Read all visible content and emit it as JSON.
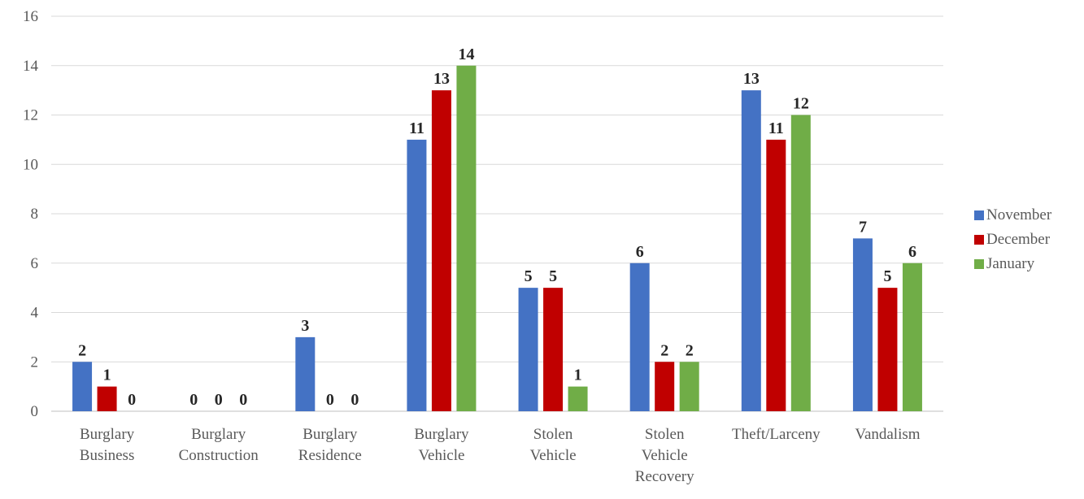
{
  "chart_data": {
    "type": "bar",
    "categories": [
      [
        "Burglary",
        "Business"
      ],
      [
        "Burglary",
        "Construction"
      ],
      [
        "Burglary",
        "Residence"
      ],
      [
        "Burglary",
        "Vehicle"
      ],
      [
        "Stolen",
        "Vehicle"
      ],
      [
        "Stolen",
        "Vehicle",
        "Recovery"
      ],
      [
        "Theft/Larceny"
      ],
      [
        "Vandalism"
      ]
    ],
    "series": [
      {
        "name": "November",
        "color": "#4472C4",
        "values": [
          2,
          0,
          3,
          11,
          5,
          6,
          13,
          7
        ]
      },
      {
        "name": "December",
        "color": "#C00000",
        "values": [
          1,
          0,
          0,
          13,
          5,
          2,
          11,
          5
        ]
      },
      {
        "name": "January",
        "color": "#70AD47",
        "values": [
          0,
          0,
          0,
          14,
          1,
          2,
          12,
          6
        ]
      }
    ],
    "ylim": [
      0,
      16
    ],
    "yticks": [
      0,
      2,
      4,
      6,
      8,
      10,
      12,
      14,
      16
    ],
    "grid": true,
    "legend_position": "right",
    "data_labels": true
  }
}
